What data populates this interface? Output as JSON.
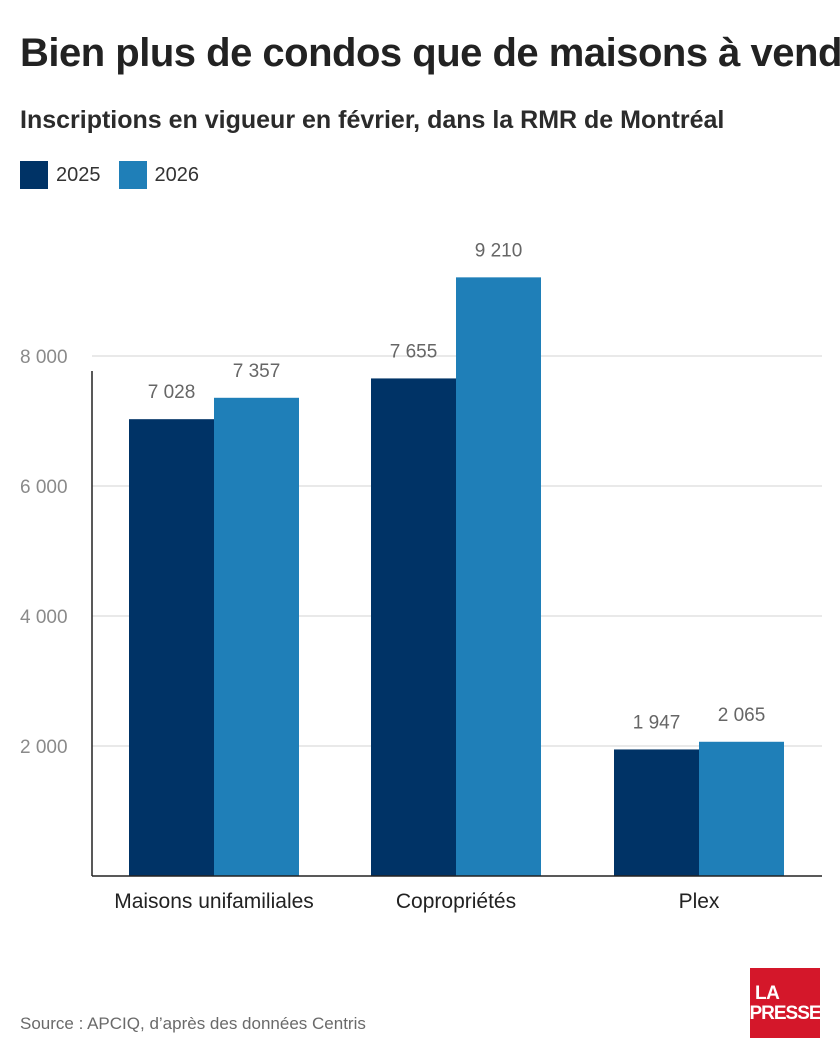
{
  "header": {
    "title": "Bien plus de condos que de maisons à vendre",
    "subtitle": "Inscriptions en vigueur en février, dans la RMR de Montréal"
  },
  "legend": {
    "items": [
      {
        "label": "2025",
        "color": "#003366"
      },
      {
        "label": "2026",
        "color": "#1f7fb8"
      }
    ]
  },
  "chart_data": {
    "type": "bar",
    "categories": [
      "Maisons unifamiliales",
      "Copropriétés",
      "Plex"
    ],
    "series": [
      {
        "name": "2025",
        "color": "#003366",
        "values": [
          7028,
          7655,
          1947
        ],
        "labels": [
          "7 028",
          "7 655",
          "1 947"
        ]
      },
      {
        "name": "2026",
        "color": "#1f7fb8",
        "values": [
          7357,
          9210,
          2065
        ],
        "labels": [
          "7 357",
          "9 210",
          "2 065"
        ]
      }
    ],
    "yticks": [
      2000,
      4000,
      6000,
      8000
    ],
    "ytick_labels": [
      "2 000",
      "4 000",
      "6 000",
      "8 000"
    ],
    "ylim": [
      0,
      10000
    ],
    "grid": true,
    "legend_position": "top-left",
    "title": "Bien plus de condos que de maisons à vendre",
    "xlabel": "",
    "ylabel": ""
  },
  "footer": {
    "source": "Source : APCIQ, d’après des données Centris",
    "logo_line1": "LA",
    "logo_line2": "PRESSE"
  }
}
